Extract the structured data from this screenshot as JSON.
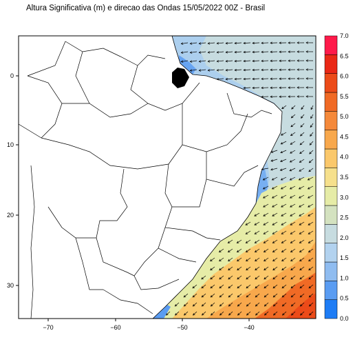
{
  "title": "Altura Significativa (m) e direcao das Ondas 15/05/2022 00Z - Brasil",
  "axes": {
    "x_ticks": [
      "−70",
      "−60",
      "−50",
      "−40"
    ],
    "y_ticks": [
      "0",
      "10",
      "20",
      "30"
    ]
  },
  "colorbar": {
    "labels": [
      "0.0",
      "0.5",
      "1.0",
      "1.5",
      "2.0",
      "2.5",
      "3.0",
      "3.5",
      "4.0",
      "4.5",
      "5.0",
      "5.5",
      "6.0",
      "6.5",
      "7.0"
    ],
    "colors": [
      "#1e7cf5",
      "#5a9cf2",
      "#8fbcf0",
      "#b2d2ef",
      "#c7dce0",
      "#d4e2c0",
      "#e6eca7",
      "#f6e08c",
      "#fbc86b",
      "#f8a84c",
      "#f5893a",
      "#f06a25",
      "#ec4b19",
      "#ea2816",
      "#ff1a4a"
    ]
  },
  "wave_direction_arrows": "present",
  "colors": {
    "land": "#ffffff",
    "borders": "#000000",
    "ocean_calm": "#c7dce0"
  }
}
